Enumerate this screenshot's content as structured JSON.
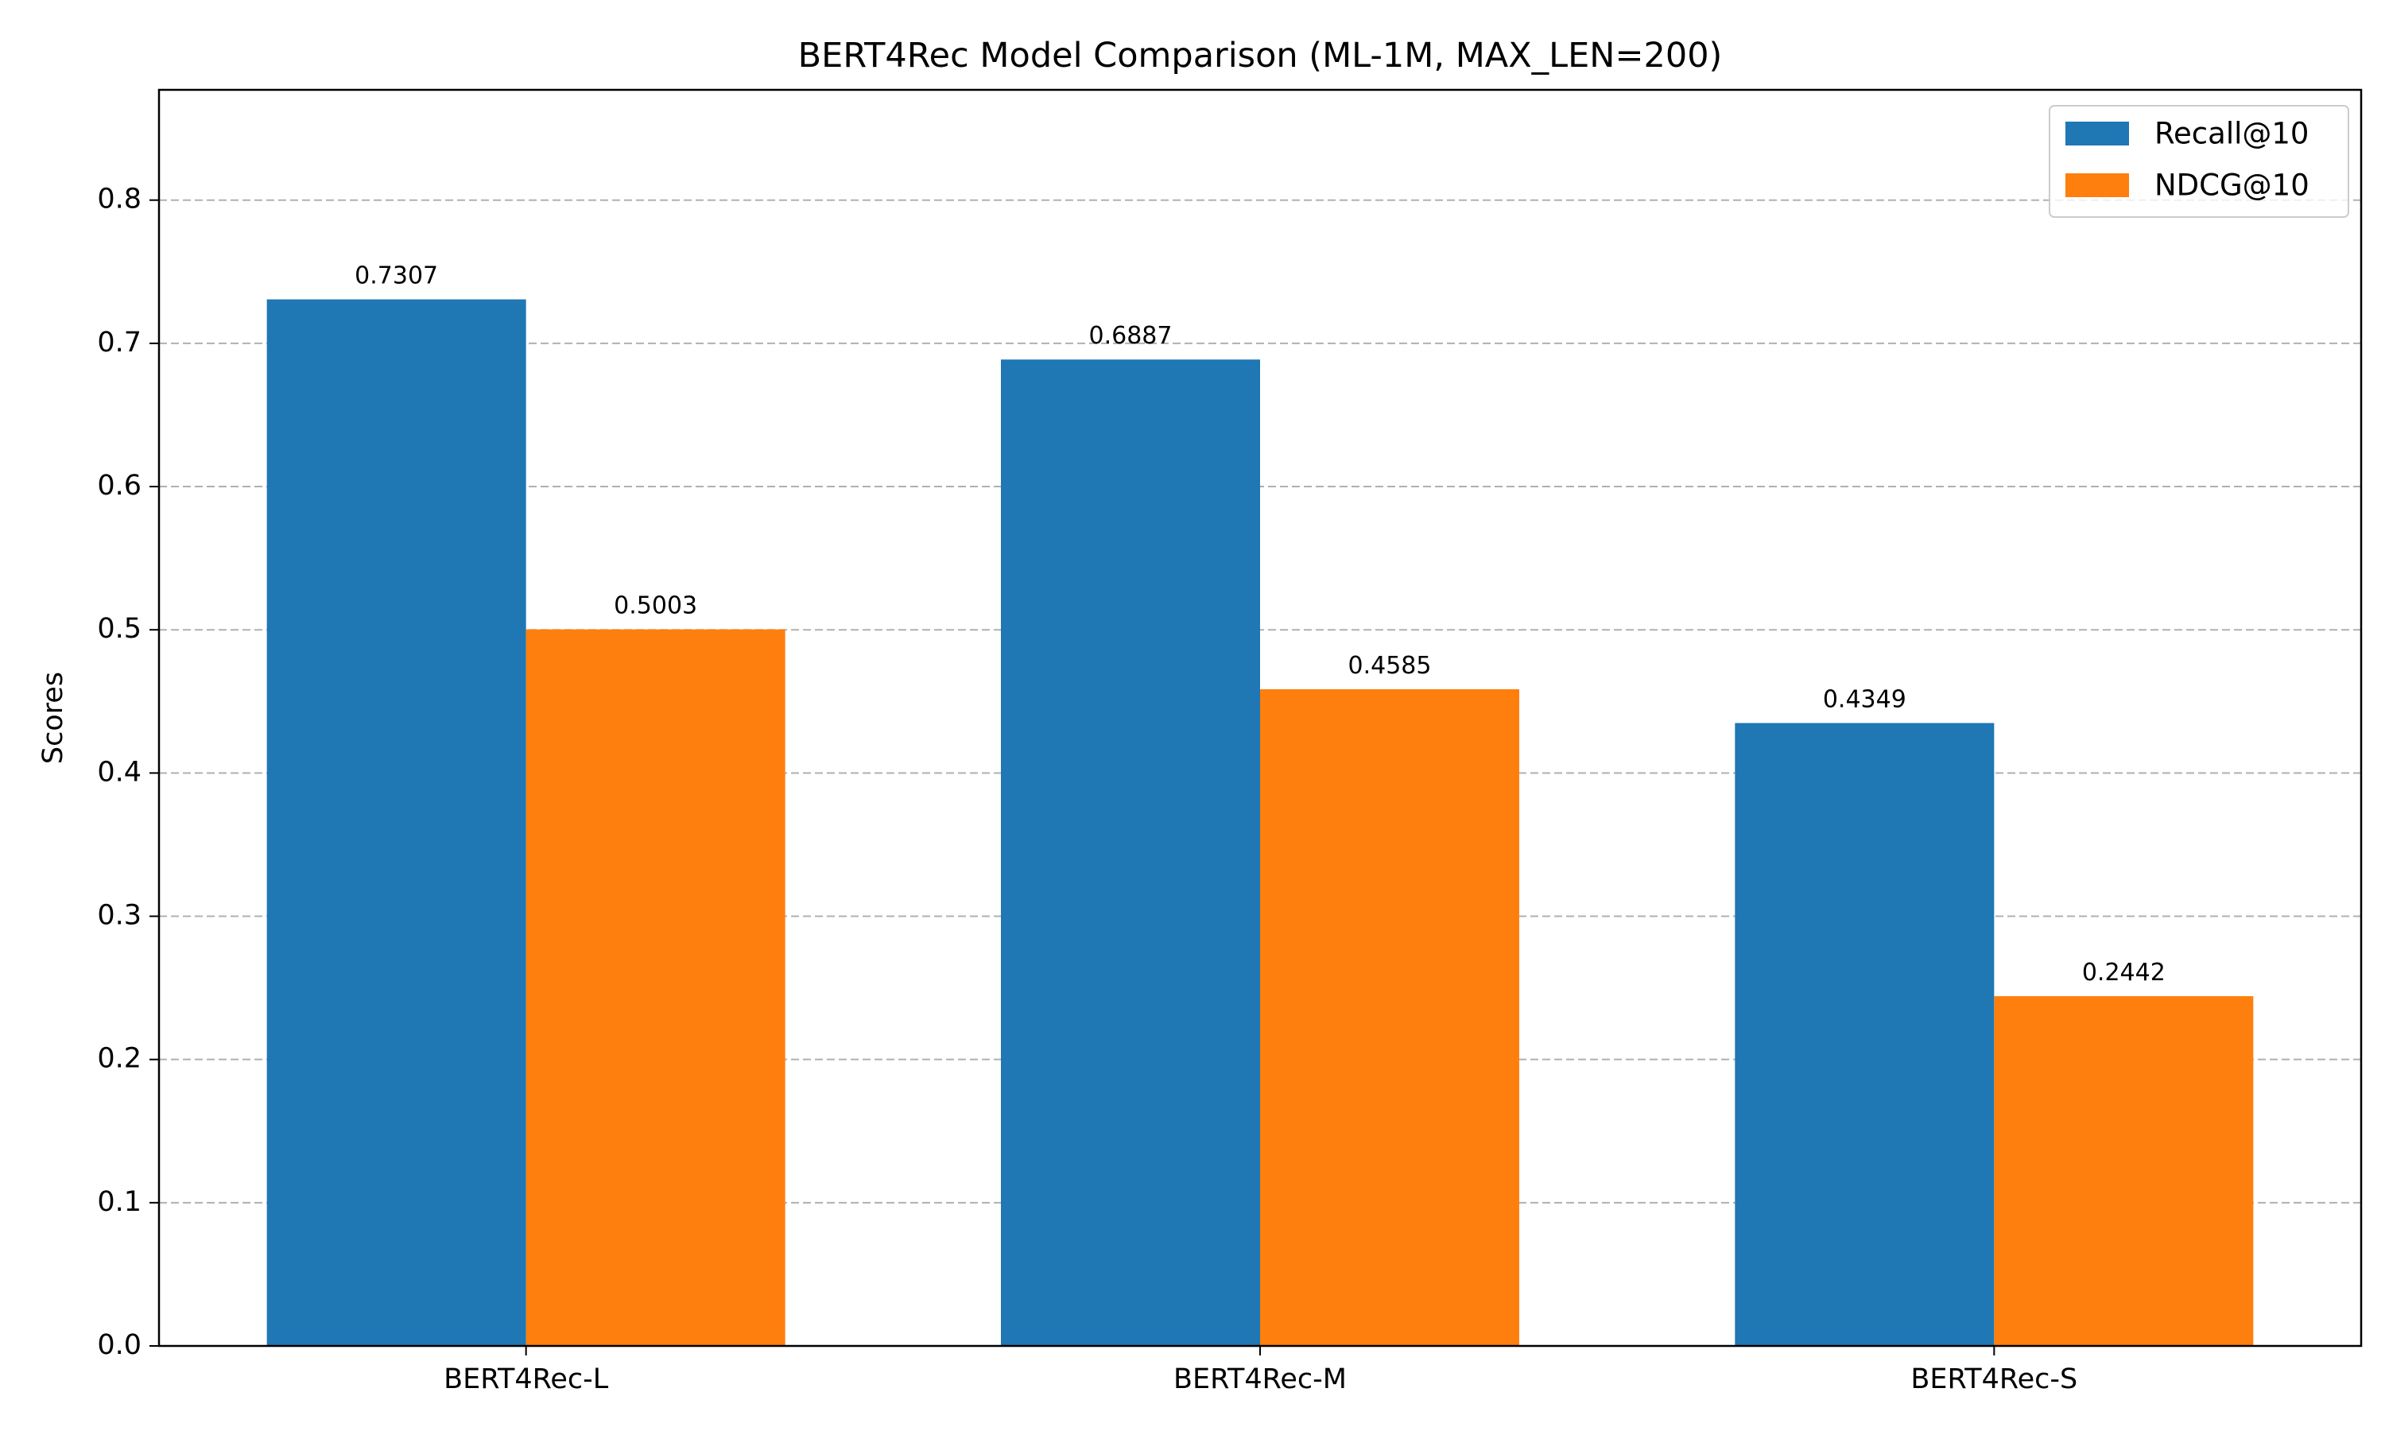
{
  "chart_data": {
    "type": "bar",
    "title": "BERT4Rec Model Comparison (ML-1M, MAX_LEN=200)",
    "xlabel": "",
    "ylabel": "Scores",
    "categories": [
      "BERT4Rec-L",
      "BERT4Rec-M",
      "BERT4Rec-S"
    ],
    "series": [
      {
        "name": "Recall@10",
        "values": [
          0.7307,
          0.6887,
          0.4349
        ],
        "labels": [
          "0.7307",
          "0.6887",
          "0.4349"
        ],
        "color": "#1f77b4"
      },
      {
        "name": "NDCG@10",
        "values": [
          0.5003,
          0.4585,
          0.2442
        ],
        "labels": [
          "0.5003",
          "0.4585",
          "0.2442"
        ],
        "color": "#ff7f0e"
      }
    ],
    "ylim": [
      0,
      0.877
    ],
    "yticks": [
      0.0,
      0.1,
      0.2,
      0.3,
      0.4,
      0.5,
      0.6,
      0.7,
      0.8
    ],
    "ytick_labels": [
      "0.0",
      "0.1",
      "0.2",
      "0.3",
      "0.4",
      "0.5",
      "0.6",
      "0.7",
      "0.8"
    ],
    "grid": "y-dashed",
    "legend_position": "top-right"
  }
}
